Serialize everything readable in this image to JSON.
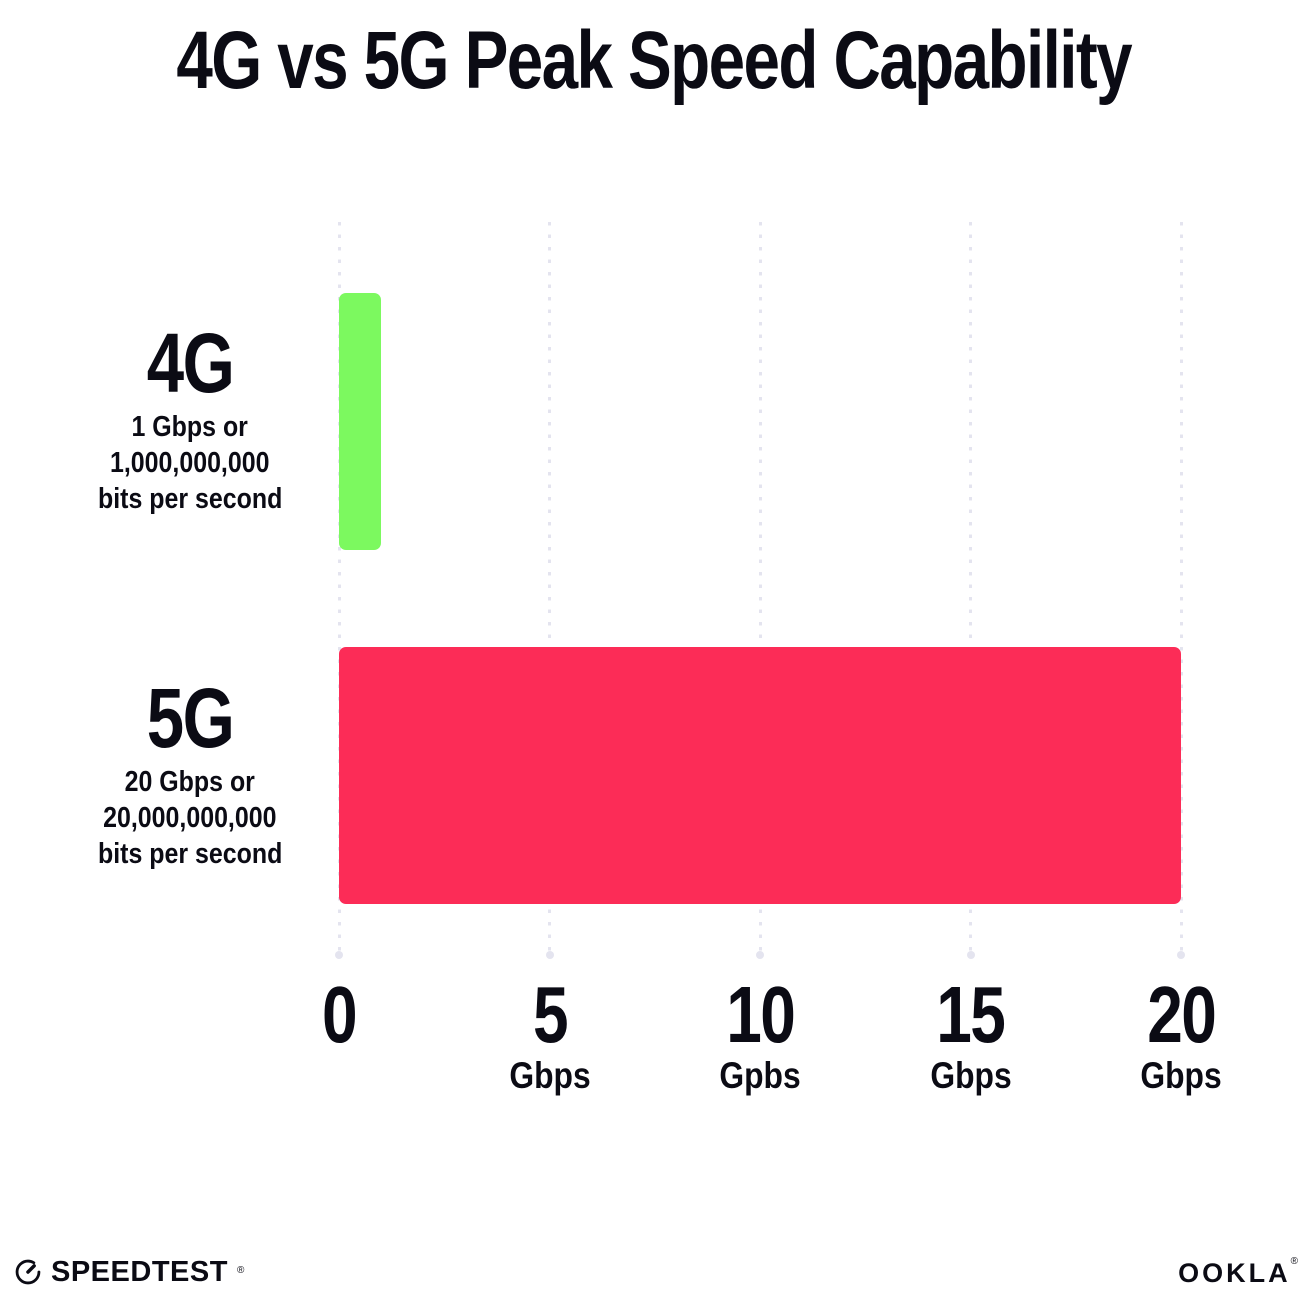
{
  "title": "4G vs 5G Peak Speed Capability",
  "colors": {
    "text": "#0b0b14",
    "grid": "#e4e4ef",
    "bar_4g": "#7cf95f",
    "bar_5g": "#fc2c57"
  },
  "chart_data": {
    "type": "bar",
    "orientation": "horizontal",
    "title": "4G vs 5G Peak Speed Capability",
    "categories": [
      "4G",
      "5G"
    ],
    "values": [
      1,
      20
    ],
    "xlim": [
      0,
      20
    ],
    "grid": "vertical dotted gridlines at 0,5,10,15,20",
    "legend": "none",
    "series_labels": [
      {
        "name": "4G",
        "sub_lines": [
          "1 Gbps or",
          "1,000,000,000",
          "bits per second"
        ],
        "color": "#7cf95f"
      },
      {
        "name": "5G",
        "sub_lines": [
          "20 Gbps or",
          "20,000,000,000",
          "bits per second"
        ],
        "color": "#fc2c57"
      }
    ],
    "x_ticks": [
      {
        "value": "0",
        "unit": ""
      },
      {
        "value": "5",
        "unit": "Gbps"
      },
      {
        "value": "10",
        "unit": "Gpbs"
      },
      {
        "value": "15",
        "unit": "Gbps"
      },
      {
        "value": "20",
        "unit": "Gbps"
      }
    ]
  },
  "footer": {
    "speedtest_label": "SPEEDTEST",
    "speedtest_mark": "®",
    "ookla_label": "OOKLA",
    "ookla_mark": "®"
  }
}
